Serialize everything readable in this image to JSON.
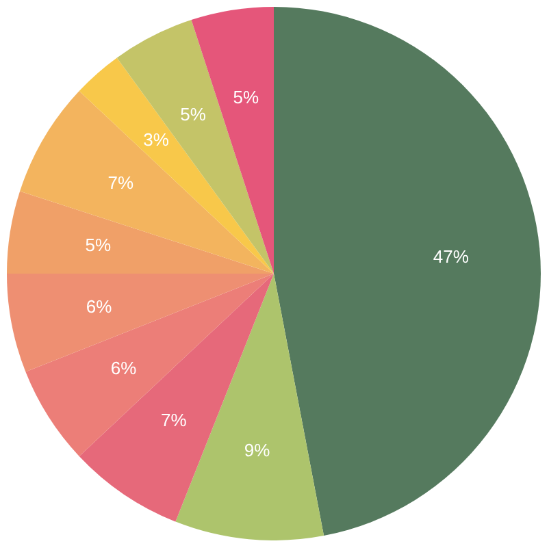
{
  "chart_data": {
    "type": "pie",
    "categories": [
      null,
      null,
      null,
      null,
      null,
      null,
      null,
      null,
      null,
      null
    ],
    "values": [
      47,
      9,
      7,
      6,
      6,
      5,
      7,
      3,
      5,
      5
    ],
    "value_labels": [
      "47%",
      "9%",
      "7%",
      "6%",
      "6%",
      "5%",
      "7%",
      "3%",
      "5%",
      "5%"
    ],
    "colors": [
      "#557a5e",
      "#adc46c",
      "#e6697a",
      "#ec7e78",
      "#ee8f72",
      "#f0a068",
      "#f3b45e",
      "#f8c84a",
      "#c4c468",
      "#e5567a"
    ]
  }
}
